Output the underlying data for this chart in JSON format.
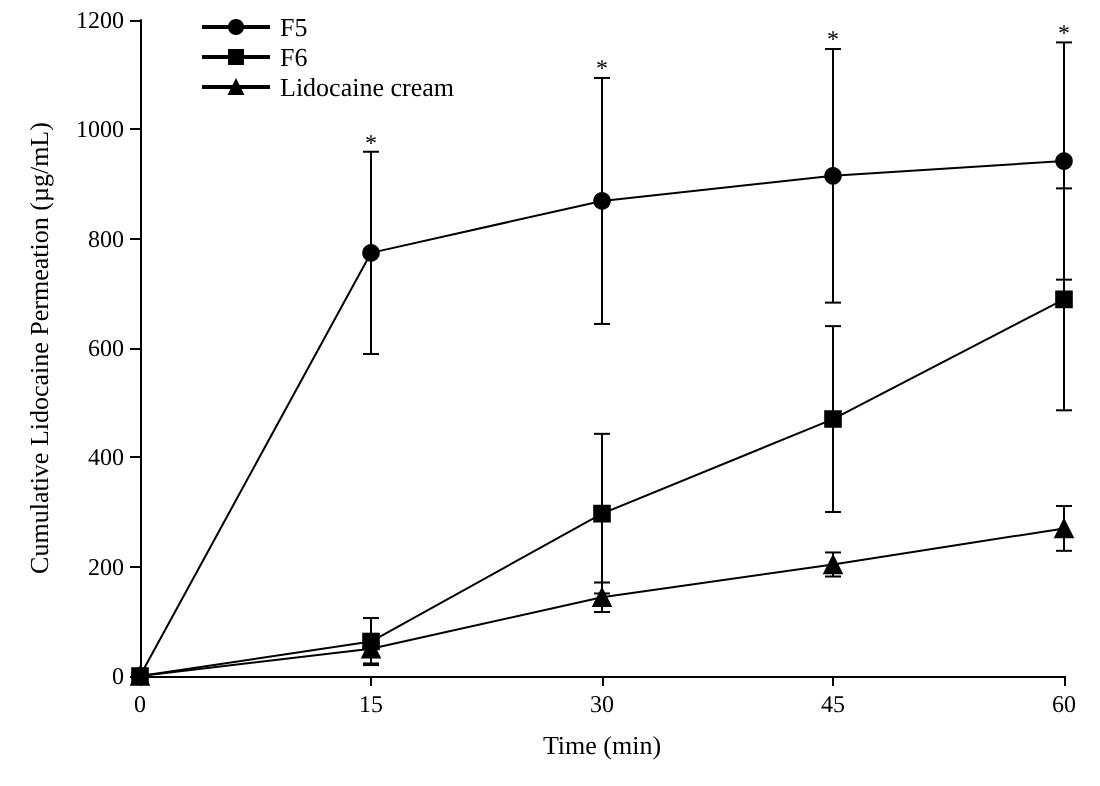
{
  "chart_data": {
    "type": "line",
    "xlabel": "Time (min)",
    "ylabel": "Cumulative Lidocaine Permeation (µg/mL)",
    "x": [
      0,
      15,
      30,
      45,
      60
    ],
    "xlim": [
      0,
      60
    ],
    "xticks": [
      0,
      15,
      30,
      45,
      60
    ],
    "ylim": [
      0,
      1200
    ],
    "yticks": [
      0,
      200,
      400,
      600,
      800,
      1000,
      1200
    ],
    "grid": false,
    "legend": "top left",
    "line_style": "solid",
    "series": [
      {
        "name": "F5",
        "color": "#000000",
        "marker": "circle",
        "values": [
          0,
          774,
          869,
          915,
          942
        ],
        "errors": [
          null,
          185,
          225,
          232,
          217
        ]
      },
      {
        "name": "F6",
        "color": "#000000",
        "marker": "square",
        "values": [
          0,
          63,
          297,
          470,
          689
        ],
        "errors": [
          null,
          43,
          146,
          170,
          203
        ]
      },
      {
        "name": "Lidocaine cream",
        "color": "#000000",
        "marker": "triangle",
        "values": [
          0,
          50,
          144,
          204,
          270
        ],
        "errors": [
          null,
          27,
          27,
          22,
          41
        ]
      }
    ],
    "annotations": [
      {
        "text": "*",
        "x": 15,
        "y": 975
      },
      {
        "text": "*",
        "x": 30,
        "y": 1112
      },
      {
        "text": "*",
        "x": 45,
        "y": 1165
      },
      {
        "text": "*",
        "x": 60,
        "y": 1177
      }
    ]
  }
}
